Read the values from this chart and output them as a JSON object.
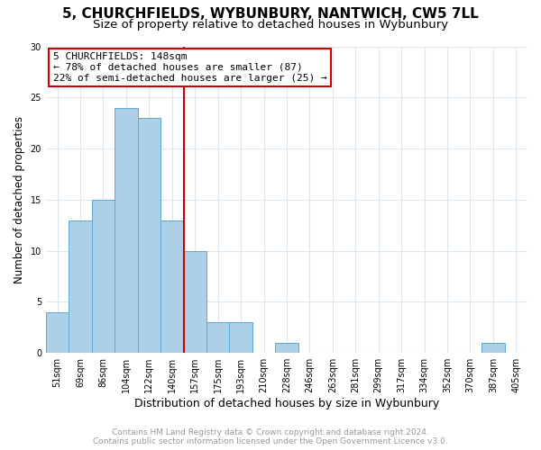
{
  "title": "5, CHURCHFIELDS, WYBUNBURY, NANTWICH, CW5 7LL",
  "subtitle": "Size of property relative to detached houses in Wybunbury",
  "xlabel": "Distribution of detached houses by size in Wybunbury",
  "ylabel": "Number of detached properties",
  "bar_labels": [
    "51sqm",
    "69sqm",
    "86sqm",
    "104sqm",
    "122sqm",
    "140sqm",
    "157sqm",
    "175sqm",
    "193sqm",
    "210sqm",
    "228sqm",
    "246sqm",
    "263sqm",
    "281sqm",
    "299sqm",
    "317sqm",
    "334sqm",
    "352sqm",
    "370sqm",
    "387sqm",
    "405sqm"
  ],
  "bar_values": [
    4,
    13,
    15,
    24,
    23,
    13,
    10,
    3,
    3,
    0,
    1,
    0,
    0,
    0,
    0,
    0,
    0,
    0,
    0,
    1,
    0
  ],
  "bar_color": "#aed0e6",
  "bar_edge_color": "#5baad4",
  "vline_color": "#cc0000",
  "annotation_line1": "5 CHURCHFIELDS: 148sqm",
  "annotation_line2": "← 78% of detached houses are smaller (87)",
  "annotation_line3": "22% of semi-detached houses are larger (25) →",
  "annotation_box_color": "#ffffff",
  "annotation_box_edge_color": "#cc0000",
  "ylim": [
    0,
    30
  ],
  "yticks": [
    0,
    5,
    10,
    15,
    20,
    25,
    30
  ],
  "footer_line1": "Contains HM Land Registry data © Crown copyright and database right 2024.",
  "footer_line2": "Contains public sector information licensed under the Open Government Licence v3.0.",
  "footer_color": "#999999",
  "background_color": "#ffffff",
  "grid_color": "#dce8f0",
  "title_fontsize": 11,
  "subtitle_fontsize": 9.5,
  "xlabel_fontsize": 9,
  "ylabel_fontsize": 8.5,
  "tick_fontsize": 7,
  "annotation_fontsize": 8,
  "footer_fontsize": 6.5
}
